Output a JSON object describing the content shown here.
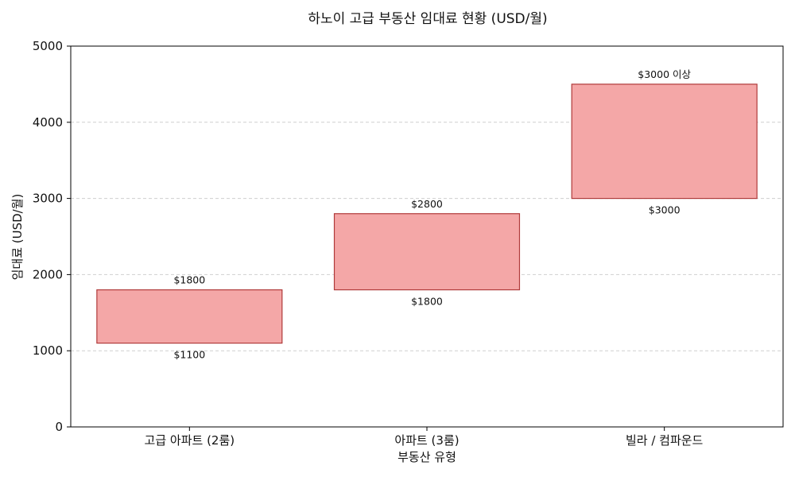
{
  "chart_data": {
    "type": "bar",
    "title": "하노이 고급 부동산 임대료 현황 (USD/월)",
    "xlabel": "부동산 유형",
    "ylabel": "임대료 (USD/월)",
    "ylim": [
      0,
      5000
    ],
    "yticks": [
      0,
      1000,
      2000,
      3000,
      4000,
      5000
    ],
    "grid": true,
    "categories": [
      "고급 아파트 (2룸)",
      "아파트 (3룸)",
      "빌라 / 컴파운드"
    ],
    "ranges": [
      {
        "low": 1100,
        "high": 1800,
        "low_label": "$1100",
        "high_label": "$1800"
      },
      {
        "low": 1800,
        "high": 2800,
        "low_label": "$1800",
        "high_label": "$2800"
      },
      {
        "low": 3000,
        "high": 4500,
        "low_label": "$3000",
        "high_label": "$3000 이상"
      }
    ],
    "colors": {
      "bar_fill": "#f4a7a7",
      "bar_edge": "#b03a3a"
    }
  }
}
